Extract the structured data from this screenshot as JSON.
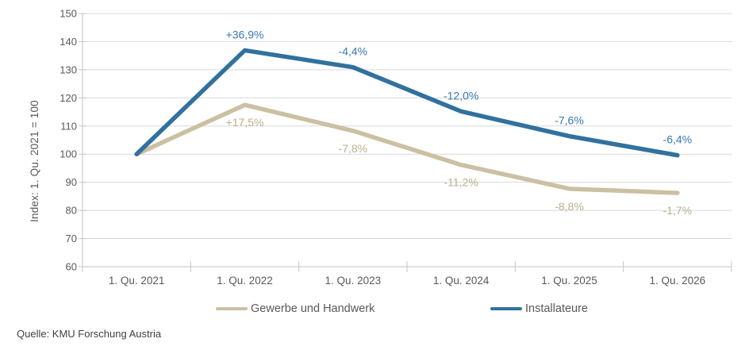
{
  "chart_data": {
    "type": "line",
    "title": "",
    "xlabel": "",
    "ylabel": "Index: 1. Qu. 2021 = 100",
    "ylim": [
      60,
      150
    ],
    "ytick_step": 10,
    "grid": "horizontal",
    "legend_position": "bottom",
    "categories": [
      "1. Qu. 2021",
      "1. Qu. 2022",
      "1. Qu. 2023",
      "1. Qu. 2024",
      "1. Qu. 2025",
      "1. Qu. 2026"
    ],
    "series": [
      {
        "name": "Gewerbe und Handwerk",
        "color": "#CBC0A2",
        "label_color": "#BCAF8B",
        "label_position": "below",
        "values": [
          100,
          117.5,
          108.3,
          96.2,
          87.7,
          86.2
        ],
        "point_labels": [
          "",
          "+17,5%",
          "-7,8%",
          "-11,2%",
          "-8,8%",
          "-1,7%"
        ]
      },
      {
        "name": "Installateure",
        "color": "#31719E",
        "label_color": "#3878B4",
        "label_position": "above",
        "values": [
          100,
          136.9,
          130.9,
          115.2,
          106.4,
          99.6
        ],
        "point_labels": [
          "",
          "+36,9%",
          "-4,4%",
          "-12,0%",
          "-7,6%",
          "-6,4%"
        ]
      }
    ]
  },
  "source": "Quelle: KMU Forschung Austria",
  "colors": {
    "background": "#FFFFFF",
    "gridline": "#D9D9D9",
    "axis": "#C6C6C6",
    "tick_label": "#595959",
    "legend_text": "#595959",
    "source_text": "#404040"
  }
}
